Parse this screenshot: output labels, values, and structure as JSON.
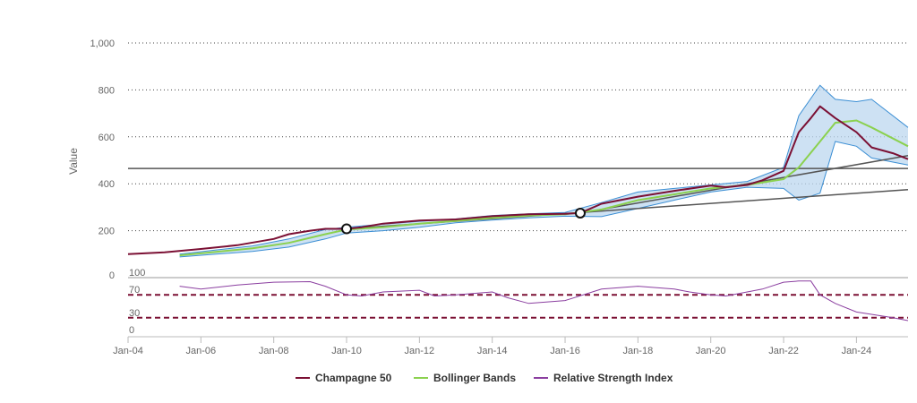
{
  "chart_data": {
    "type": "line",
    "ylabel": "Value",
    "ylim": [
      0,
      1000
    ],
    "y_ticks": [
      "1,000",
      "800",
      "600",
      "400",
      "200",
      "0"
    ],
    "x_ticks": [
      "Jan-04",
      "Jan-06",
      "Jan-08",
      "Jan-10",
      "Jan-12",
      "Jan-14",
      "Jan-16",
      "Jan-18",
      "Jan-20",
      "Jan-22",
      "Jan-24"
    ],
    "xlim": [
      "2004-01",
      "2025-06"
    ],
    "grid": "dotted horizontal",
    "legend_position": "bottom-center",
    "colors": {
      "price": "#7b1034",
      "bands_mid": "#8bd14f",
      "bands_edge": "#3c8fd4",
      "bands_fill": "#bcd7ef",
      "rsi": "#8b3fa0",
      "rsi_levels": "#7b1034",
      "trendlines": "#555555"
    },
    "series": [
      {
        "name": "Champagne 50",
        "x": [
          "2004-01",
          "2005-01",
          "2006-01",
          "2007-01",
          "2008-01",
          "2008-06",
          "2009-01",
          "2009-06",
          "2010-01",
          "2010-06",
          "2011-01",
          "2012-01",
          "2013-01",
          "2014-01",
          "2015-01",
          "2016-01",
          "2016-06",
          "2017-01",
          "2018-01",
          "2019-01",
          "2020-01",
          "2020-06",
          "2021-01",
          "2021-06",
          "2022-01",
          "2022-06",
          "2022-10",
          "2023-01",
          "2023-06",
          "2024-01",
          "2024-06",
          "2025-01",
          "2025-06"
        ],
        "values": [
          100,
          108,
          122,
          138,
          165,
          185,
          200,
          208,
          208,
          215,
          230,
          243,
          248,
          262,
          270,
          272,
          275,
          315,
          345,
          370,
          392,
          385,
          395,
          415,
          455,
          620,
          680,
          730,
          680,
          620,
          555,
          530,
          505
        ]
      },
      {
        "name": "Bollinger Bands",
        "type": "band",
        "x": [
          "2005-06",
          "2006-06",
          "2007-06",
          "2008-06",
          "2009-06",
          "2010-01",
          "2011-01",
          "2012-01",
          "2013-01",
          "2014-01",
          "2015-01",
          "2016-01",
          "2017-01",
          "2018-01",
          "2019-01",
          "2020-01",
          "2021-01",
          "2022-01",
          "2022-06",
          "2023-01",
          "2023-06",
          "2024-01",
          "2024-06",
          "2025-06"
        ],
        "middle": [
          95,
          110,
          125,
          148,
          185,
          205,
          215,
          230,
          242,
          255,
          265,
          270,
          290,
          330,
          355,
          380,
          395,
          420,
          470,
          580,
          660,
          670,
          640,
          560
        ],
        "upper": [
          100,
          118,
          135,
          165,
          205,
          215,
          228,
          240,
          250,
          265,
          272,
          278,
          320,
          365,
          380,
          395,
          410,
          470,
          690,
          820,
          760,
          750,
          760,
          640
        ],
        "lower": [
          88,
          100,
          112,
          130,
          165,
          190,
          200,
          215,
          234,
          245,
          255,
          262,
          260,
          295,
          330,
          365,
          385,
          380,
          330,
          360,
          580,
          560,
          510,
          480
        ]
      },
      {
        "name": "Relative Strength Index",
        "panel": "lower",
        "ylim": [
          0,
          100
        ],
        "levels": [
          70,
          30
        ],
        "x": [
          "2005-06",
          "2006-01",
          "2007-01",
          "2008-01",
          "2009-01",
          "2009-06",
          "2010-01",
          "2010-06",
          "2011-01",
          "2012-01",
          "2012-06",
          "2013-01",
          "2014-01",
          "2014-06",
          "2015-01",
          "2016-01",
          "2017-01",
          "2018-01",
          "2019-01",
          "2019-06",
          "2020-01",
          "2020-06",
          "2021-01",
          "2021-06",
          "2022-01",
          "2022-06",
          "2022-10",
          "2023-01",
          "2023-06",
          "2024-01",
          "2025-01",
          "2025-06"
        ],
        "values": [
          85,
          80,
          87,
          92,
          93,
          85,
          70,
          68,
          75,
          78,
          68,
          70,
          75,
          65,
          55,
          60,
          80,
          85,
          80,
          75,
          70,
          68,
          75,
          80,
          92,
          94,
          94,
          70,
          55,
          40,
          30,
          25
        ]
      }
    ],
    "trendlines": [
      {
        "type": "horizontal",
        "value": 465
      },
      {
        "type": "line",
        "from": [
          "2010-01",
          208
        ],
        "to": [
          "2025-06",
          375
        ]
      },
      {
        "type": "line",
        "from": [
          "2016-06",
          275
        ],
        "to": [
          "2025-06",
          520
        ]
      }
    ],
    "markers": [
      {
        "x": "2010-01",
        "value": 208
      },
      {
        "x": "2016-06",
        "value": 275
      }
    ],
    "rsi_tick_labels": [
      "100",
      "70",
      "30",
      "0"
    ]
  }
}
